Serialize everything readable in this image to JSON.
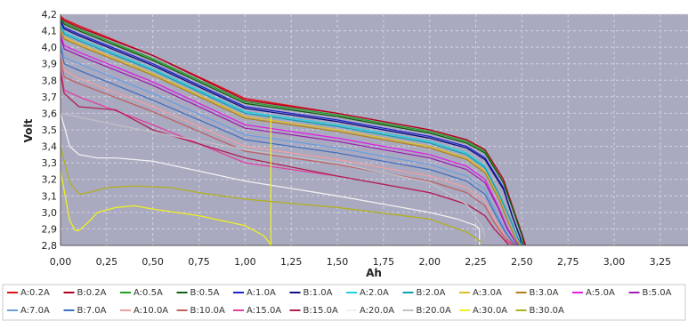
{
  "chart_data": {
    "type": "line",
    "title": "",
    "xlabel": "Ah",
    "ylabel": "Volt",
    "xlim": [
      0,
      3.4
    ],
    "ylim": [
      2.8,
      4.2
    ],
    "grid": true,
    "legend_position": "bottom",
    "x_ticks": [
      "0,00",
      "0,25",
      "0,50",
      "0,75",
      "1,00",
      "1,25",
      "1,50",
      "1,75",
      "2,00",
      "2,25",
      "2,50",
      "2,75",
      "3,00",
      "3,25"
    ],
    "y_ticks": [
      "2,8",
      "2,9",
      "3,0",
      "3,1",
      "3,2",
      "3,3",
      "3,4",
      "3,5",
      "3,6",
      "3,7",
      "3,8",
      "3,9",
      "4,0",
      "4,1",
      "4,2"
    ],
    "colors": {
      "plot_background": "#a9a9c0",
      "grid": "#d4d4e2"
    },
    "series": [
      {
        "name": "A:0.2A",
        "color": "#e01010",
        "x": [
          0,
          0.02,
          0.1,
          0.5,
          1.0,
          1.5,
          2.0,
          2.2,
          2.3,
          2.4,
          2.46,
          2.5,
          2.52
        ],
        "y": [
          4.19,
          4.17,
          4.13,
          3.95,
          3.69,
          3.6,
          3.5,
          3.44,
          3.38,
          3.2,
          3.0,
          2.87,
          2.8
        ]
      },
      {
        "name": "B:0.2A",
        "color": "#b00020",
        "x": [
          0,
          0.02,
          0.1,
          0.5,
          1.0,
          1.5,
          2.0,
          2.2,
          2.3,
          2.4,
          2.46,
          2.5,
          2.52
        ],
        "y": [
          4.18,
          4.16,
          4.12,
          3.95,
          3.68,
          3.6,
          3.5,
          3.44,
          3.38,
          3.2,
          3.0,
          2.87,
          2.8
        ]
      },
      {
        "name": "A:0.5A",
        "color": "#20a020",
        "x": [
          0,
          0.02,
          0.1,
          0.5,
          1.0,
          1.5,
          2.0,
          2.2,
          2.3,
          2.4,
          2.46,
          2.5,
          2.51
        ],
        "y": [
          4.17,
          4.15,
          4.11,
          3.93,
          3.67,
          3.59,
          3.49,
          3.43,
          3.37,
          3.18,
          2.99,
          2.86,
          2.8
        ]
      },
      {
        "name": "B:0.5A",
        "color": "#106010",
        "x": [
          0,
          0.02,
          0.1,
          0.5,
          1.0,
          1.5,
          2.0,
          2.2,
          2.3,
          2.4,
          2.46,
          2.5,
          2.51
        ],
        "y": [
          4.17,
          4.14,
          4.1,
          3.92,
          3.66,
          3.58,
          3.48,
          3.42,
          3.36,
          3.18,
          2.99,
          2.86,
          2.8
        ]
      },
      {
        "name": "A:1.0A",
        "color": "#2020d0",
        "x": [
          0,
          0.02,
          0.1,
          0.5,
          1.0,
          1.5,
          2.0,
          2.2,
          2.3,
          2.4,
          2.45,
          2.49,
          2.5
        ],
        "y": [
          4.16,
          4.12,
          4.08,
          3.9,
          3.64,
          3.56,
          3.46,
          3.4,
          3.33,
          3.15,
          2.97,
          2.85,
          2.8
        ]
      },
      {
        "name": "B:1.0A",
        "color": "#101080",
        "x": [
          0,
          0.02,
          0.1,
          0.5,
          1.0,
          1.5,
          2.0,
          2.2,
          2.3,
          2.4,
          2.45,
          2.49,
          2.5
        ],
        "y": [
          4.15,
          4.11,
          4.07,
          3.89,
          3.63,
          3.55,
          3.45,
          3.39,
          3.32,
          3.14,
          2.97,
          2.85,
          2.8
        ]
      },
      {
        "name": "A:2.0A",
        "color": "#20d0e0",
        "x": [
          0,
          0.02,
          0.1,
          0.5,
          1.0,
          1.5,
          2.0,
          2.2,
          2.3,
          2.38,
          2.44,
          2.48,
          2.5
        ],
        "y": [
          4.14,
          4.09,
          4.05,
          3.87,
          3.61,
          3.53,
          3.43,
          3.36,
          3.28,
          3.1,
          2.95,
          2.84,
          2.8
        ]
      },
      {
        "name": "B:2.0A",
        "color": "#10a0b0",
        "x": [
          0,
          0.02,
          0.1,
          0.5,
          1.0,
          1.5,
          2.0,
          2.2,
          2.3,
          2.38,
          2.44,
          2.48,
          2.5
        ],
        "y": [
          4.13,
          4.08,
          4.04,
          3.86,
          3.6,
          3.52,
          3.42,
          3.35,
          3.27,
          3.1,
          2.95,
          2.84,
          2.8
        ]
      },
      {
        "name": "A:3.0A",
        "color": "#e0c020",
        "x": [
          0,
          0.02,
          0.1,
          0.5,
          1.0,
          1.5,
          2.0,
          2.2,
          2.3,
          2.38,
          2.43,
          2.47,
          2.49
        ],
        "y": [
          4.11,
          4.06,
          4.02,
          3.84,
          3.58,
          3.5,
          3.4,
          3.33,
          3.25,
          3.08,
          2.93,
          2.83,
          2.8
        ]
      },
      {
        "name": "B:3.0A",
        "color": "#b08020",
        "x": [
          0,
          0.02,
          0.1,
          0.5,
          1.0,
          1.5,
          2.0,
          2.2,
          2.3,
          2.38,
          2.43,
          2.47,
          2.49
        ],
        "y": [
          4.1,
          4.05,
          4.01,
          3.83,
          3.57,
          3.49,
          3.39,
          3.32,
          3.24,
          3.07,
          2.93,
          2.83,
          2.8
        ]
      },
      {
        "name": "A:5.0A",
        "color": "#e020e0",
        "x": [
          0,
          0.02,
          0.1,
          0.5,
          1.0,
          1.5,
          2.0,
          2.2,
          2.3,
          2.37,
          2.42,
          2.46,
          2.48
        ],
        "y": [
          4.08,
          4.01,
          3.97,
          3.79,
          3.53,
          3.45,
          3.35,
          3.28,
          3.2,
          3.04,
          2.91,
          2.83,
          2.8
        ]
      },
      {
        "name": "B:5.0A",
        "color": "#a020b0",
        "x": [
          0,
          0.02,
          0.1,
          0.5,
          1.0,
          1.5,
          2.0,
          2.2,
          2.3,
          2.37,
          2.42,
          2.46,
          2.48
        ],
        "y": [
          4.06,
          3.99,
          3.95,
          3.77,
          3.51,
          3.43,
          3.33,
          3.26,
          3.18,
          3.03,
          2.9,
          2.83,
          2.8
        ]
      },
      {
        "name": "A:7.0A",
        "color": "#6aa0e0",
        "x": [
          0,
          0.02,
          0.1,
          0.5,
          1.0,
          1.5,
          2.0,
          2.2,
          2.3,
          2.36,
          2.41,
          2.45,
          2.47
        ],
        "y": [
          4.03,
          3.94,
          3.9,
          3.72,
          3.47,
          3.39,
          3.29,
          3.22,
          3.14,
          3.0,
          2.89,
          2.82,
          2.8
        ]
      },
      {
        "name": "B:7.0A",
        "color": "#4070c0",
        "x": [
          0,
          0.02,
          0.1,
          0.5,
          1.0,
          1.5,
          2.0,
          2.2,
          2.3,
          2.36,
          2.41,
          2.45,
          2.47
        ],
        "y": [
          4.0,
          3.9,
          3.86,
          3.68,
          3.44,
          3.36,
          3.26,
          3.19,
          3.11,
          2.98,
          2.88,
          2.82,
          2.8
        ]
      },
      {
        "name": "A:10.0A",
        "color": "#f0a0a0",
        "x": [
          0,
          0.02,
          0.1,
          0.5,
          1.0,
          1.5,
          2.0,
          2.2,
          2.3,
          2.35,
          2.4,
          2.44,
          2.46
        ],
        "y": [
          3.97,
          3.86,
          3.81,
          3.64,
          3.4,
          3.32,
          3.22,
          3.15,
          3.07,
          2.96,
          2.87,
          2.82,
          2.8
        ]
      },
      {
        "name": "B:10.0A",
        "color": "#c06060",
        "x": [
          0,
          0.02,
          0.1,
          0.5,
          1.0,
          1.5,
          2.0,
          2.2,
          2.3,
          2.35,
          2.4,
          2.44,
          2.46
        ],
        "y": [
          3.94,
          3.82,
          3.78,
          3.61,
          3.37,
          3.29,
          3.19,
          3.12,
          3.04,
          2.94,
          2.86,
          2.82,
          2.8
        ]
      },
      {
        "name": "A:15.0A",
        "color": "#e040a0",
        "x": [
          0,
          0.02,
          0.1,
          0.5,
          1.0,
          1.5,
          2.0,
          2.2,
          2.3,
          2.35,
          2.4,
          2.44,
          2.45
        ],
        "y": [
          3.88,
          3.74,
          3.7,
          3.53,
          3.3,
          3.22,
          3.12,
          3.05,
          2.98,
          2.9,
          2.84,
          2.81,
          2.8
        ]
      },
      {
        "name": "B:15.0A",
        "color": "#b02050",
        "x": [
          0,
          0.02,
          0.1,
          0.3,
          0.5,
          1.0,
          1.5,
          2.0,
          2.2,
          2.3,
          2.35,
          2.4,
          2.43
        ],
        "y": [
          3.84,
          3.72,
          3.64,
          3.62,
          3.5,
          3.33,
          3.22,
          3.12,
          3.05,
          2.98,
          2.9,
          2.84,
          2.8
        ]
      },
      {
        "name": "A:20.0A",
        "color": "#f0f0f0",
        "x": [
          0,
          0.05,
          0.1,
          0.2,
          0.3,
          0.5,
          0.75,
          1.0,
          1.5,
          2.0,
          2.15,
          2.25,
          2.27,
          2.27
        ],
        "y": [
          3.6,
          3.4,
          3.35,
          3.33,
          3.33,
          3.31,
          3.25,
          3.19,
          3.1,
          3.0,
          2.96,
          2.92,
          2.9,
          2.8
        ]
      },
      {
        "name": "B:20.0A",
        "color": "#c0c0c8",
        "x": [
          0,
          0.3,
          1.0,
          1.5,
          2.0,
          2.2,
          2.28,
          2.3
        ],
        "y": [
          3.6,
          3.53,
          3.38,
          3.3,
          3.18,
          3.05,
          2.92,
          2.85
        ]
      },
      {
        "name": "A:30.0A",
        "color": "#f0f020",
        "x": [
          0,
          0.05,
          0.08,
          0.1,
          0.15,
          0.2,
          0.3,
          0.4,
          0.5,
          0.75,
          1.0,
          1.1,
          1.13,
          1.14,
          1.14,
          1.14
        ],
        "y": [
          3.25,
          2.95,
          2.89,
          2.89,
          2.94,
          3.0,
          3.03,
          3.04,
          3.02,
          2.98,
          2.92,
          2.86,
          2.82,
          2.8,
          3.58,
          2.8
        ]
      },
      {
        "name": "B:30.0A",
        "color": "#b0b020",
        "x": [
          0,
          0.05,
          0.1,
          0.15,
          0.25,
          0.4,
          0.6,
          0.75,
          1.0,
          1.5,
          2.0,
          2.2,
          2.28
        ],
        "y": [
          3.4,
          3.18,
          3.11,
          3.12,
          3.15,
          3.16,
          3.15,
          3.12,
          3.08,
          3.03,
          2.96,
          2.88,
          2.82
        ]
      }
    ]
  }
}
